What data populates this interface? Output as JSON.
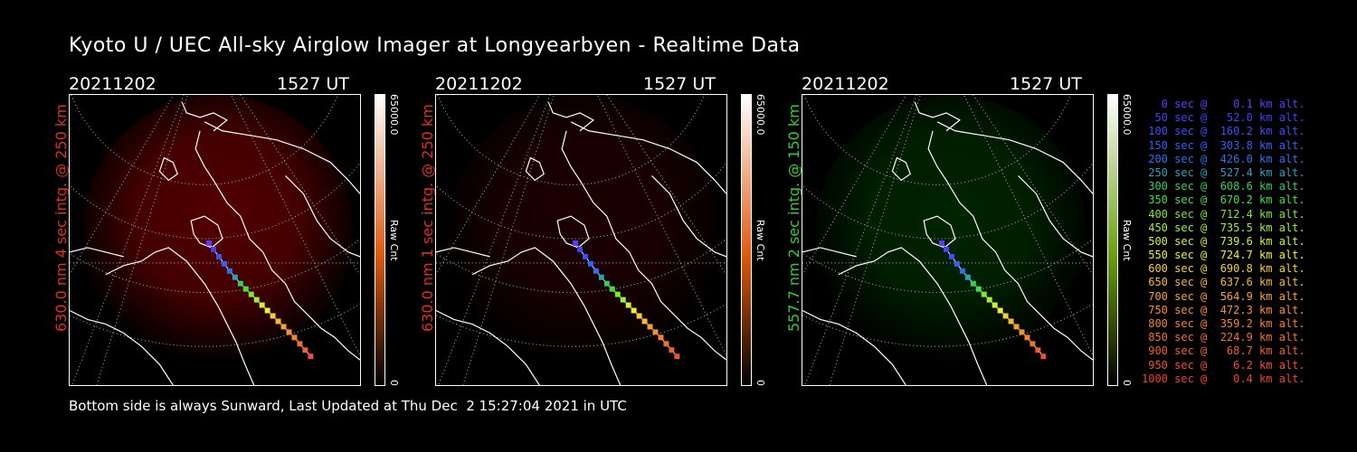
{
  "title": "Kyoto U / UEC All-sky Airglow Imager at Longyearbyen - Realtime Data",
  "footer": "Bottom side is always Sunward, Last Updated at Thu Dec  2 15:27:04 2021 in UTC",
  "panels": [
    {
      "date": "20211202",
      "time": "1527 UT",
      "ylabel": "630.0 nm 4 sec intg. @ 250 km",
      "ylabel_color": "#e03020",
      "cbar_max": "65000.0",
      "cbar_min": "0",
      "cbar_unit": "Raw Cnt",
      "cbar_color": "#e05a10",
      "glow": "red",
      "glow_level": 1.0
    },
    {
      "date": "20211202",
      "time": "1527 UT",
      "ylabel": "630.0 nm 1 sec intg. @ 250 km",
      "ylabel_color": "#e03020",
      "cbar_max": "65000.0",
      "cbar_min": "0",
      "cbar_unit": "Raw Cnt",
      "cbar_color": "#e05a10",
      "glow": "red",
      "glow_level": 0.35
    },
    {
      "date": "20211202",
      "time": "1527 UT",
      "ylabel": "557.7 nm 2 sec intg. @ 150 km",
      "ylabel_color": "#30d030",
      "cbar_max": "65000.0",
      "cbar_min": "0",
      "cbar_unit": "Raw Cnt",
      "cbar_color": "#6aa010",
      "glow": "green",
      "glow_level": 0.6
    }
  ],
  "legend": [
    {
      "text": "   0 sec @    0.1 km alt.",
      "color": "#5a3cff"
    },
    {
      "text": "  50 sec @   52.0 km alt.",
      "color": "#4040ff"
    },
    {
      "text": " 100 sec @  160.2 km alt.",
      "color": "#3850ff"
    },
    {
      "text": " 150 sec @  303.8 km alt.",
      "color": "#3060ff"
    },
    {
      "text": " 200 sec @  426.0 km alt.",
      "color": "#3070f0"
    },
    {
      "text": " 250 sec @  527.4 km alt.",
      "color": "#2aa0c0"
    },
    {
      "text": " 300 sec @  608.6 km alt.",
      "color": "#30d060"
    },
    {
      "text": " 350 sec @  670.2 km alt.",
      "color": "#40e040"
    },
    {
      "text": " 400 sec @  712.4 km alt.",
      "color": "#80e830"
    },
    {
      "text": " 450 sec @  735.5 km alt.",
      "color": "#a0f030"
    },
    {
      "text": " 500 sec @  739.6 km alt.",
      "color": "#d0f030"
    },
    {
      "text": " 550 sec @  724.7 km alt.",
      "color": "#f0f030"
    },
    {
      "text": " 600 sec @  690.8 km alt.",
      "color": "#f8d030"
    },
    {
      "text": " 650 sec @  637.6 km alt.",
      "color": "#f8b830"
    },
    {
      "text": " 700 sec @  564.9 km alt.",
      "color": "#f8a030"
    },
    {
      "text": " 750 sec @  472.3 km alt.",
      "color": "#f89030"
    },
    {
      "text": " 800 sec @  359.2 km alt.",
      "color": "#f88030"
    },
    {
      "text": " 850 sec @  224.9 km alt.",
      "color": "#f07030"
    },
    {
      "text": " 900 sec @   68.7 km alt.",
      "color": "#f06030"
    },
    {
      "text": " 950 sec @    6.2 km alt.",
      "color": "#f05030"
    },
    {
      "text": "1000 sec @    0.4 km alt.",
      "color": "#f04030"
    }
  ]
}
